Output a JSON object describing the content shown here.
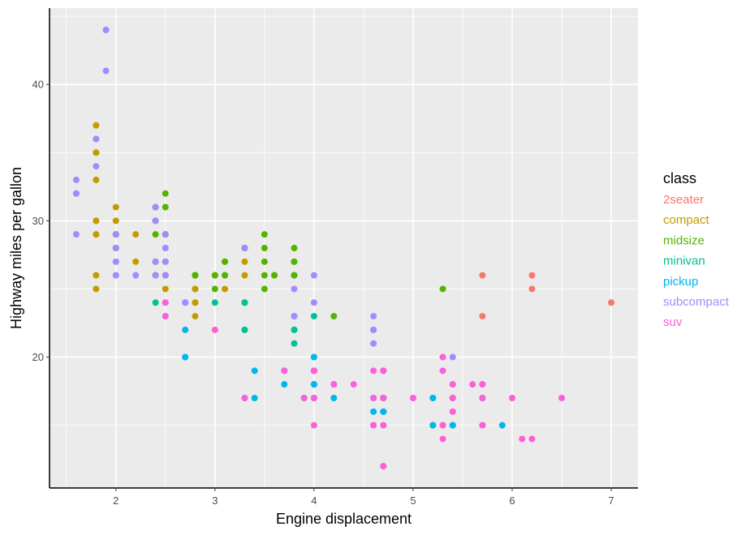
{
  "chart_data": {
    "type": "scatter",
    "title": "",
    "xlabel": "Engine displacement",
    "ylabel": "Highway miles per gallon",
    "xlim": [
      1.33,
      7.27
    ],
    "ylim": [
      10.4,
      45.6
    ],
    "x_ticks": [
      2,
      3,
      4,
      5,
      6,
      7
    ],
    "x_tick_labels": [
      "2",
      "3",
      "4",
      "5",
      "6",
      "7"
    ],
    "y_ticks": [
      20,
      30,
      40
    ],
    "y_tick_labels": [
      "20",
      "30",
      "40"
    ],
    "grid": true,
    "panel_background": "#ebebeb",
    "legend": {
      "title": "class",
      "position": "right",
      "style": "colored-text"
    },
    "series": [
      {
        "name": "2seater",
        "color": "#f8766d",
        "points": [
          [
            5.7,
            26
          ],
          [
            5.7,
            23
          ],
          [
            6.2,
            26
          ],
          [
            6.2,
            25
          ],
          [
            7.0,
            24
          ]
        ]
      },
      {
        "name": "compact",
        "color": "#c49a00",
        "points": [
          [
            1.8,
            29
          ],
          [
            1.8,
            29
          ],
          [
            2.0,
            31
          ],
          [
            2.0,
            30
          ],
          [
            2.8,
            26
          ],
          [
            2.8,
            26
          ],
          [
            3.1,
            27
          ],
          [
            1.8,
            26
          ],
          [
            1.8,
            25
          ],
          [
            2.0,
            28
          ],
          [
            2.0,
            29
          ],
          [
            2.8,
            25
          ],
          [
            2.8,
            25
          ],
          [
            3.1,
            25
          ],
          [
            2.2,
            27
          ],
          [
            2.2,
            29
          ],
          [
            2.4,
            31
          ],
          [
            2.4,
            31
          ],
          [
            3.0,
            26
          ],
          [
            2.0,
            29
          ],
          [
            2.0,
            29
          ],
          [
            2.0,
            29
          ],
          [
            2.0,
            29
          ],
          [
            2.5,
            29
          ],
          [
            2.5,
            29
          ],
          [
            2.8,
            24
          ],
          [
            2.8,
            24
          ],
          [
            1.8,
            37
          ],
          [
            1.8,
            35
          ],
          [
            1.8,
            30
          ],
          [
            1.8,
            33
          ],
          [
            1.8,
            35
          ],
          [
            2.0,
            29
          ],
          [
            2.5,
            27
          ],
          [
            2.5,
            26
          ],
          [
            2.5,
            25
          ],
          [
            2.5,
            27
          ],
          [
            2.8,
            23
          ],
          [
            3.3,
            27
          ],
          [
            2.4,
            27
          ],
          [
            3.0,
            26
          ],
          [
            3.3,
            26
          ]
        ]
      },
      {
        "name": "midsize",
        "color": "#53b400",
        "points": [
          [
            2.4,
            27
          ],
          [
            2.4,
            30
          ],
          [
            3.1,
            26
          ],
          [
            3.5,
            29
          ],
          [
            3.6,
            26
          ],
          [
            2.4,
            29
          ],
          [
            3.0,
            26
          ],
          [
            3.3,
            28
          ],
          [
            3.3,
            28
          ],
          [
            3.3,
            28
          ],
          [
            3.8,
            26
          ],
          [
            3.8,
            27
          ],
          [
            3.8,
            26
          ],
          [
            5.3,
            25
          ],
          [
            2.4,
            26
          ],
          [
            2.4,
            30
          ],
          [
            3.1,
            26
          ],
          [
            3.5,
            25
          ],
          [
            3.5,
            27
          ],
          [
            3.1,
            27
          ],
          [
            3.8,
            28
          ],
          [
            3.8,
            27
          ],
          [
            3.8,
            26
          ],
          [
            2.0,
            29
          ],
          [
            2.0,
            29
          ],
          [
            2.5,
            32
          ],
          [
            2.5,
            31
          ],
          [
            2.5,
            26
          ],
          [
            2.8,
            26
          ],
          [
            2.4,
            26
          ],
          [
            3.5,
            28
          ],
          [
            4.2,
            23
          ],
          [
            3.0,
            25
          ],
          [
            2.0,
            28
          ],
          [
            2.0,
            29
          ],
          [
            2.5,
            29
          ],
          [
            2.8,
            26
          ],
          [
            2.8,
            26
          ],
          [
            3.6,
            26
          ],
          [
            3.5,
            26
          ],
          [
            2.5,
            29
          ]
        ]
      },
      {
        "name": "minivan",
        "color": "#00c094",
        "points": [
          [
            2.4,
            24
          ],
          [
            3.0,
            24
          ],
          [
            3.3,
            22
          ],
          [
            3.3,
            22
          ],
          [
            3.3,
            24
          ],
          [
            3.3,
            24
          ],
          [
            3.3,
            24
          ],
          [
            3.8,
            22
          ],
          [
            3.8,
            22
          ],
          [
            3.8,
            21
          ],
          [
            4.0,
            23
          ],
          [
            3.8,
            23
          ]
        ]
      },
      {
        "name": "pickup",
        "color": "#00b6eb",
        "points": [
          [
            3.7,
            19
          ],
          [
            3.7,
            18
          ],
          [
            3.9,
            17
          ],
          [
            3.9,
            17
          ],
          [
            4.7,
            16
          ],
          [
            4.7,
            16
          ],
          [
            4.7,
            17
          ],
          [
            5.2,
            15
          ],
          [
            5.2,
            17
          ],
          [
            5.7,
            17
          ],
          [
            5.9,
            15
          ],
          [
            4.7,
            12
          ],
          [
            4.7,
            17
          ],
          [
            4.7,
            16
          ],
          [
            5.2,
            17
          ],
          [
            5.2,
            15
          ],
          [
            2.7,
            20
          ],
          [
            2.7,
            20
          ],
          [
            2.7,
            22
          ],
          [
            3.4,
            17
          ],
          [
            3.4,
            19
          ],
          [
            4.0,
            18
          ],
          [
            4.0,
            20
          ],
          [
            4.0,
            17
          ],
          [
            4.0,
            20
          ],
          [
            4.0,
            18
          ],
          [
            4.0,
            18
          ],
          [
            4.6,
            17
          ],
          [
            4.6,
            16
          ],
          [
            5.4,
            15
          ],
          [
            5.4,
            15
          ],
          [
            5.4,
            15
          ],
          [
            4.2,
            17
          ],
          [
            4.7,
            17
          ]
        ]
      },
      {
        "name": "subcompact",
        "color": "#a58aff",
        "points": [
          [
            3.8,
            25
          ],
          [
            3.8,
            23
          ],
          [
            4.0,
            26
          ],
          [
            4.0,
            24
          ],
          [
            4.6,
            21
          ],
          [
            4.6,
            22
          ],
          [
            4.6,
            23
          ],
          [
            4.6,
            22
          ],
          [
            5.4,
            20
          ],
          [
            1.6,
            33
          ],
          [
            1.6,
            32
          ],
          [
            1.6,
            32
          ],
          [
            1.6,
            29
          ],
          [
            1.6,
            32
          ],
          [
            1.8,
            34
          ],
          [
            1.8,
            36
          ],
          [
            1.8,
            36
          ],
          [
            2.0,
            29
          ],
          [
            2.4,
            26
          ],
          [
            2.4,
            27
          ],
          [
            2.4,
            30
          ],
          [
            2.4,
            31
          ],
          [
            2.5,
            26
          ],
          [
            2.5,
            26
          ],
          [
            3.3,
            28
          ],
          [
            2.0,
            26
          ],
          [
            2.0,
            29
          ],
          [
            2.0,
            28
          ],
          [
            2.0,
            27
          ],
          [
            2.7,
            24
          ],
          [
            2.7,
            24
          ],
          [
            2.7,
            24
          ],
          [
            2.2,
            26
          ],
          [
            2.5,
            28
          ],
          [
            2.5,
            29
          ],
          [
            1.9,
            44
          ],
          [
            1.9,
            44
          ],
          [
            1.9,
            41
          ],
          [
            2.0,
            29
          ],
          [
            2.0,
            26
          ],
          [
            2.5,
            27
          ],
          [
            2.5,
            26
          ],
          [
            2.5,
            29
          ],
          [
            2.5,
            28
          ],
          [
            2.0,
            27
          ]
        ]
      },
      {
        "name": "suv",
        "color": "#fb61d7",
        "points": [
          [
            5.3,
            20
          ],
          [
            5.3,
            15
          ],
          [
            5.3,
            20
          ],
          [
            5.7,
            17
          ],
          [
            6.0,
            17
          ],
          [
            5.7,
            17
          ],
          [
            5.7,
            15
          ],
          [
            6.2,
            14
          ],
          [
            6.5,
            17
          ],
          [
            4.7,
            12
          ],
          [
            5.7,
            15
          ],
          [
            5.0,
            17
          ],
          [
            5.4,
            18
          ],
          [
            4.0,
            19
          ],
          [
            4.0,
            19
          ],
          [
            4.6,
            17
          ],
          [
            5.4,
            17
          ],
          [
            4.0,
            17
          ],
          [
            4.0,
            15
          ],
          [
            4.0,
            19
          ],
          [
            4.6,
            19
          ],
          [
            5.0,
            17
          ],
          [
            4.2,
            18
          ],
          [
            4.2,
            18
          ],
          [
            4.7,
            17
          ],
          [
            4.7,
            19
          ],
          [
            4.7,
            19
          ],
          [
            5.7,
            18
          ],
          [
            6.1,
            14
          ],
          [
            4.0,
            19
          ],
          [
            4.0,
            19
          ],
          [
            4.7,
            17
          ],
          [
            4.7,
            15
          ],
          [
            4.7,
            17
          ],
          [
            4.7,
            17
          ],
          [
            5.7,
            18
          ],
          [
            4.4,
            18
          ],
          [
            5.3,
            19
          ],
          [
            5.3,
            14
          ],
          [
            5.6,
            18
          ],
          [
            5.4,
            17
          ],
          [
            5.4,
            17
          ],
          [
            5.4,
            16
          ],
          [
            5.4,
            18
          ],
          [
            4.6,
            15
          ],
          [
            4.6,
            15
          ],
          [
            3.3,
            17
          ],
          [
            3.3,
            17
          ],
          [
            4.0,
            17
          ],
          [
            3.9,
            17
          ],
          [
            5.3,
            15
          ],
          [
            2.5,
            24
          ],
          [
            2.5,
            23
          ],
          [
            2.5,
            24
          ],
          [
            2.5,
            23
          ],
          [
            3.0,
            22
          ],
          [
            3.7,
            19
          ],
          [
            4.0,
            17
          ],
          [
            4.7,
            19
          ],
          [
            5.7,
            18
          ],
          [
            4.7,
            17
          ],
          [
            4.0,
            19
          ]
        ]
      }
    ]
  }
}
